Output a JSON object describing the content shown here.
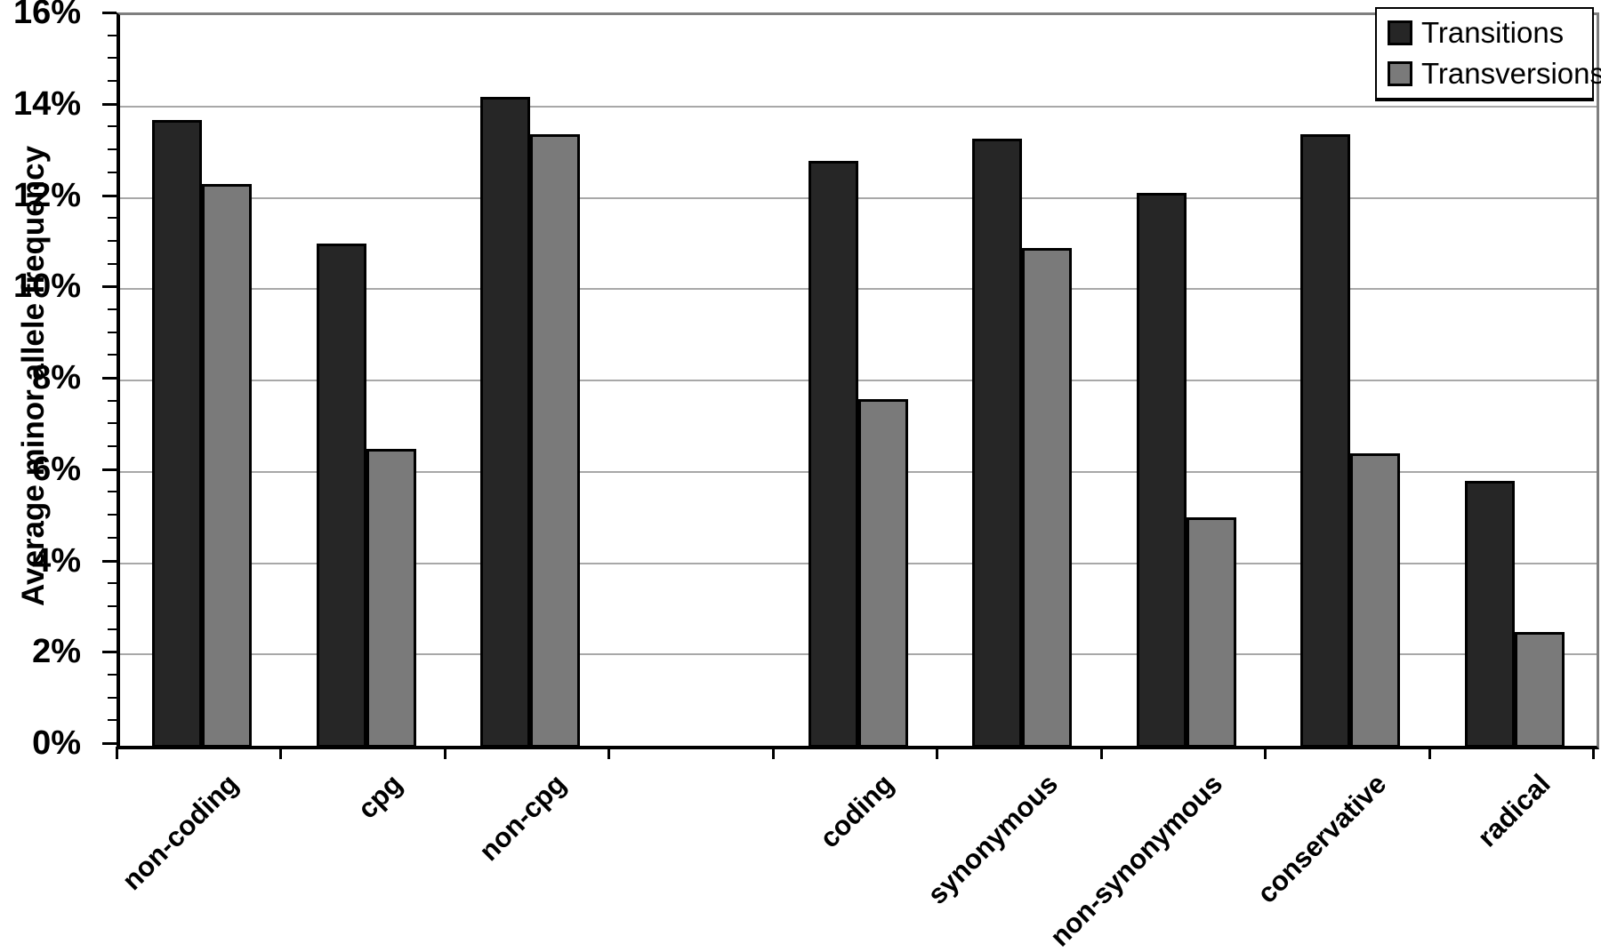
{
  "chart_data": {
    "type": "bar",
    "title": "",
    "xlabel": "",
    "ylabel": "Average minor allele frequency",
    "ylim": [
      0,
      16
    ],
    "ytick_step": 2,
    "ytick_minor_step": 0.5,
    "ytick_labels": [
      "0%",
      "2%",
      "4%",
      "6%",
      "8%",
      "10%",
      "12%",
      "14%",
      "16%"
    ],
    "grid": true,
    "legend_position": "top-right",
    "slots_total": 9,
    "categories": [
      {
        "label": "non-coding",
        "slot": 1
      },
      {
        "label": "cpg",
        "slot": 2
      },
      {
        "label": "non-cpg",
        "slot": 3
      },
      {
        "label": "coding",
        "slot": 5
      },
      {
        "label": "synonymous",
        "slot": 6
      },
      {
        "label": "non-synonymous",
        "slot": 7
      },
      {
        "label": "conservative",
        "slot": 8
      },
      {
        "label": "radical",
        "slot": 9
      }
    ],
    "series": [
      {
        "name": "Transitions",
        "color": "#262626",
        "values": [
          13.7,
          11.0,
          14.2,
          12.8,
          13.3,
          12.1,
          13.4,
          5.8
        ]
      },
      {
        "name": "Transversions",
        "color": "#7a7a7a",
        "values": [
          12.3,
          6.5,
          13.4,
          7.6,
          10.9,
          5.0,
          6.4,
          2.5
        ]
      }
    ],
    "colors": {
      "bar_border": "#000000",
      "gridline": "#a8a8a8",
      "plot_border_gray": "#7f7f7f",
      "axis": "#000000",
      "background": "#ffffff",
      "text": "#000000"
    }
  }
}
